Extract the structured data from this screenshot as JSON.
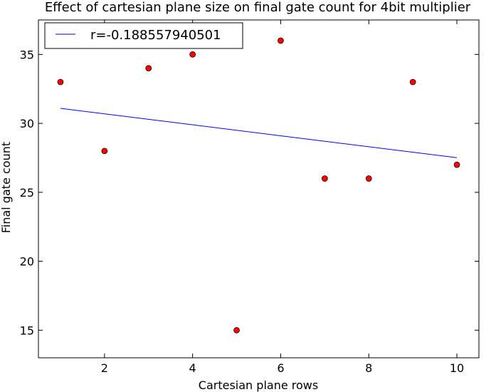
{
  "chart_data": {
    "type": "scatter",
    "title": "Effect of cartesian plane size on final gate count for 4bit multiplier",
    "xlabel": "Cartesian plane rows",
    "ylabel": "Final gate count",
    "xlim": [
      0.5,
      10.5
    ],
    "ylim": [
      13,
      37.5
    ],
    "xticks": [
      2,
      4,
      6,
      8,
      10
    ],
    "yticks": [
      15,
      20,
      25,
      30,
      35
    ],
    "grid": false,
    "legend_position": "upper-left",
    "points": {
      "x": [
        1,
        2,
        3,
        4,
        5,
        6,
        7,
        8,
        9,
        10
      ],
      "y": [
        33,
        28,
        34,
        35,
        15,
        36,
        26,
        26,
        33,
        27
      ],
      "color": "#ff0000"
    },
    "fit_line": {
      "name": "r=-0.188557940501",
      "x": [
        1,
        10
      ],
      "y": [
        31.09,
        27.51
      ],
      "color": "#0000ff"
    }
  }
}
